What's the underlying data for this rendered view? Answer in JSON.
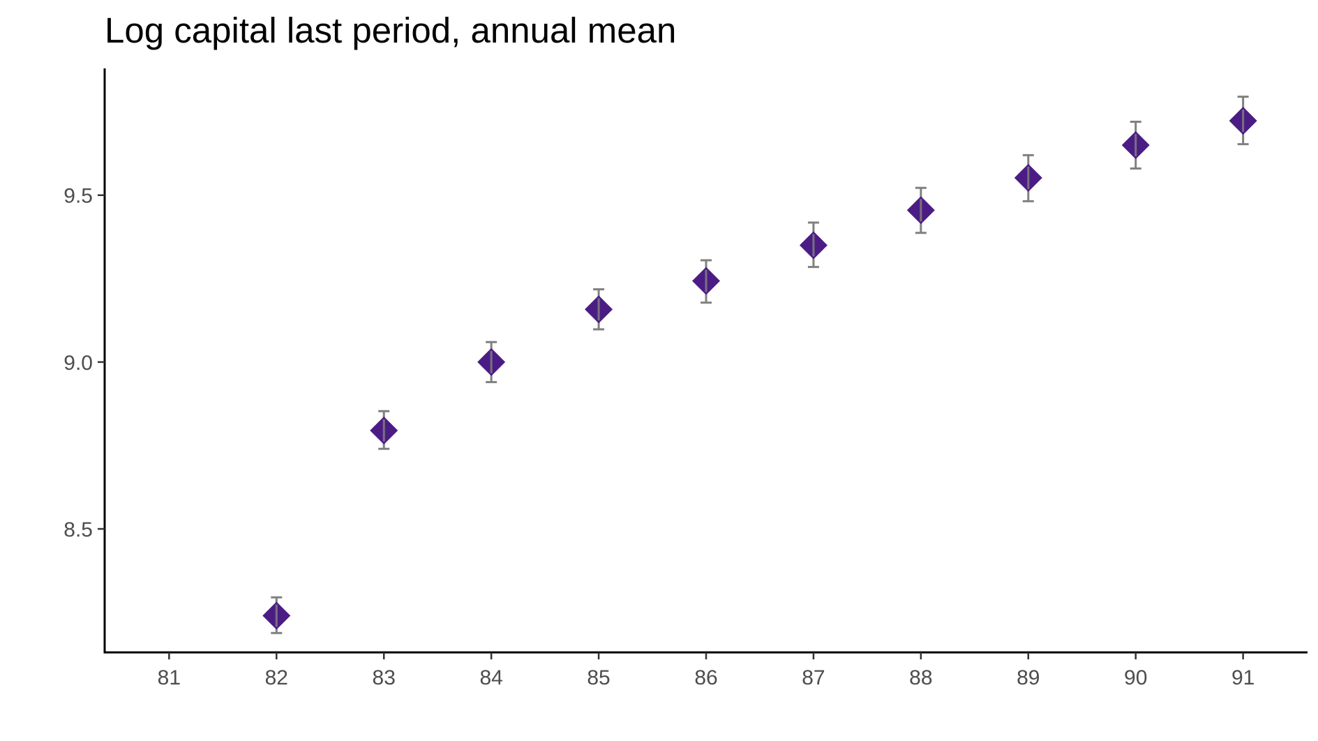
{
  "chart_data": {
    "type": "scatter",
    "title": "Log capital last period, annual mean",
    "xlabel": "",
    "ylabel": "",
    "x": [
      82,
      83,
      84,
      85,
      86,
      87,
      88,
      89,
      90,
      91
    ],
    "y": [
      8.24,
      8.795,
      9.0,
      9.158,
      9.243,
      9.35,
      9.455,
      9.552,
      9.65,
      9.723
    ],
    "error_low": [
      8.188,
      8.74,
      8.94,
      9.098,
      9.178,
      9.285,
      9.387,
      9.482,
      9.58,
      9.653
    ],
    "error_high": [
      8.295,
      8.853,
      9.06,
      9.218,
      9.305,
      9.418,
      9.522,
      9.62,
      9.72,
      9.795
    ],
    "xlim": [
      80.4,
      91.6
    ],
    "ylim": [
      8.13,
      9.88
    ],
    "x_ticks": [
      "81",
      "82",
      "83",
      "84",
      "85",
      "86",
      "87",
      "88",
      "89",
      "90",
      "91"
    ],
    "y_ticks": [
      "8.5",
      "9.0",
      "9.5"
    ],
    "grid": false,
    "legend": "none",
    "marker": "diamond",
    "colors": {
      "marker": "#4b1d84",
      "error_bar": "#808080",
      "axis": "#000000",
      "tick_label": "#4d4d4d"
    }
  }
}
